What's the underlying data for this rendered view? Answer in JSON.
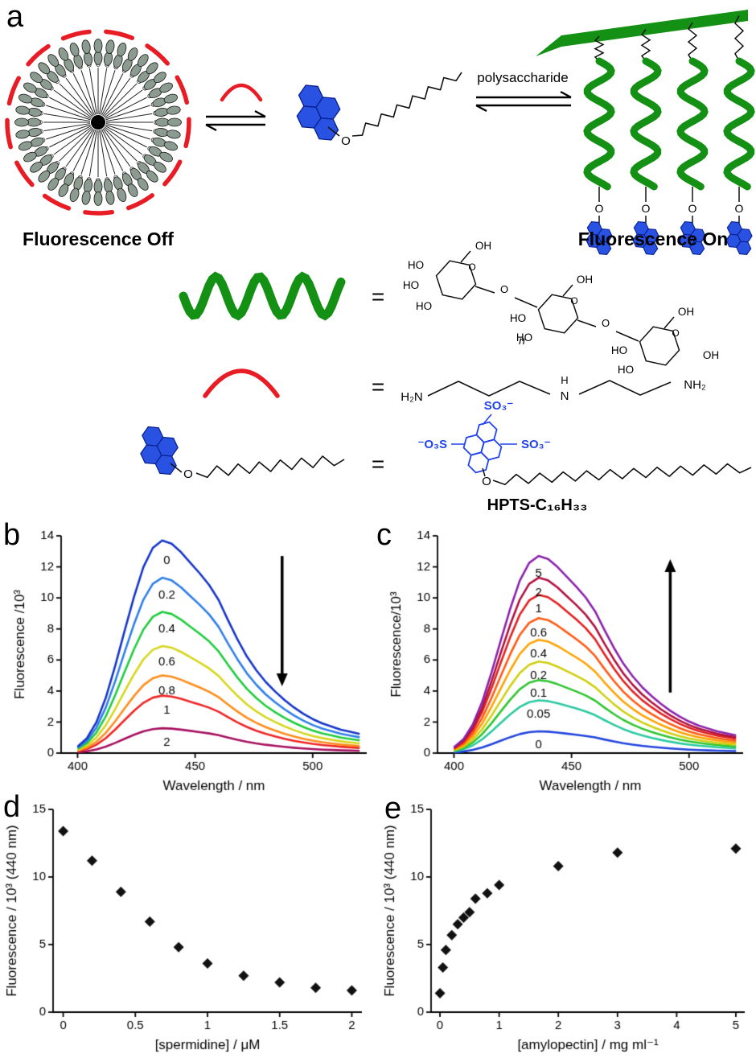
{
  "panel_letters": {
    "a": "a",
    "b": "b",
    "c": "c",
    "d": "d",
    "e": "e"
  },
  "schematic": {
    "fluorescence_off": "Fluorescence Off",
    "fluorescence_on": "Fluorescence On",
    "arrow_label": "polysaccharide",
    "equals": "=",
    "molecule_name": "HPTS-C₁₆H₃₃",
    "labels": {
      "oh": "OH",
      "ho": "HO",
      "o": "O",
      "n": "n",
      "h2n": "H₂N",
      "nh2": "NH₂",
      "n_atom": "N",
      "h": "H",
      "so3": "SO₃⁻",
      "so3_left": "⁻O₃S"
    },
    "colors": {
      "helix_green": "#149114",
      "crescent_red": "#e81c24",
      "pyrene_blue": "#2a52e2",
      "pyrene_blue_dark": "#071f8f",
      "hpts_blue": "#2244ee",
      "micelle_gray": "#8b9b8f"
    }
  },
  "chart_data": [
    {
      "id": "b",
      "type": "line",
      "xlabel": "Wavelength / nm",
      "ylabel": "Fluorescence /10³",
      "xlim": [
        393,
        523
      ],
      "ylim": [
        0,
        14
      ],
      "xticks": [
        400,
        450,
        500
      ],
      "xtick_labels": [
        "400",
        "450",
        "500"
      ],
      "yticks": [
        0,
        2,
        4,
        6,
        8,
        10,
        12,
        14
      ],
      "ytick_labels": [
        "0",
        "2",
        "4",
        "6",
        "8",
        "10",
        "12",
        "14"
      ],
      "label_x": 438,
      "wavelengths": [
        400,
        404,
        408,
        412,
        416,
        420,
        424,
        428,
        432,
        436,
        440,
        444,
        448,
        452,
        456,
        460,
        464,
        468,
        472,
        476,
        480,
        484,
        488,
        492,
        496,
        500,
        504,
        508,
        512,
        516,
        520
      ],
      "shape": [
        0.03,
        0.07,
        0.145,
        0.26,
        0.41,
        0.575,
        0.735,
        0.875,
        0.965,
        1.0,
        0.985,
        0.945,
        0.895,
        0.845,
        0.79,
        0.72,
        0.625,
        0.535,
        0.455,
        0.39,
        0.335,
        0.29,
        0.25,
        0.215,
        0.185,
        0.16,
        0.14,
        0.125,
        0.11,
        0.1,
        0.09
      ],
      "series": [
        {
          "label": "0",
          "peak": 13.7,
          "label_y": 12.4,
          "color": "#1535c8"
        },
        {
          "label": "0.2",
          "peak": 11.3,
          "label_y": 10.15,
          "color": "#2f7fe8"
        },
        {
          "label": "0.4",
          "peak": 9.1,
          "label_y": 8.0,
          "color": "#21cc3e"
        },
        {
          "label": "0.6",
          "peak": 6.9,
          "label_y": 5.85,
          "color": "#d6d61e"
        },
        {
          "label": "0.8",
          "peak": 5.0,
          "label_y": 4.0,
          "color": "#ff8c1a"
        },
        {
          "label": "1",
          "peak": 3.7,
          "label_y": 2.75,
          "color": "#ee2525"
        },
        {
          "label": "2",
          "peak": 1.6,
          "label_y": 0.7,
          "color": "#a61060"
        }
      ],
      "arrow": {
        "direction": "down",
        "x": 487,
        "y_from": 12.7,
        "y_to": 4.3
      }
    },
    {
      "id": "c",
      "type": "line",
      "xlabel": "Wavelength / nm",
      "ylabel": "Fluorescence/10³",
      "xlim": [
        393,
        523
      ],
      "ylim": [
        0,
        14
      ],
      "xticks": [
        400,
        450,
        500
      ],
      "xtick_labels": [
        "400",
        "450",
        "500"
      ],
      "yticks": [
        0,
        2,
        4,
        6,
        8,
        10,
        12,
        14
      ],
      "ytick_labels": [
        "0",
        "2",
        "4",
        "6",
        "8",
        "10",
        "12",
        "14"
      ],
      "label_x": 436,
      "wavelengths": [
        400,
        404,
        408,
        412,
        416,
        420,
        424,
        428,
        432,
        436,
        440,
        444,
        448,
        452,
        456,
        460,
        464,
        468,
        472,
        476,
        480,
        484,
        488,
        492,
        496,
        500,
        504,
        508,
        512,
        516,
        520
      ],
      "shape": [
        0.03,
        0.07,
        0.145,
        0.26,
        0.41,
        0.575,
        0.735,
        0.875,
        0.965,
        1.0,
        0.985,
        0.945,
        0.895,
        0.845,
        0.79,
        0.72,
        0.625,
        0.535,
        0.455,
        0.39,
        0.335,
        0.29,
        0.25,
        0.215,
        0.185,
        0.16,
        0.14,
        0.125,
        0.11,
        0.1,
        0.09
      ],
      "series": [
        {
          "label": "5",
          "peak": 12.7,
          "label_y": 11.55,
          "color": "#8a22aa"
        },
        {
          "label": "2",
          "peak": 11.3,
          "label_y": 10.35,
          "color": "#b01240"
        },
        {
          "label": "1",
          "peak": 10.2,
          "label_y": 9.3,
          "color": "#e02020"
        },
        {
          "label": "0.6",
          "peak": 8.7,
          "label_y": 7.75,
          "color": "#ff5a12"
        },
        {
          "label": "0.4",
          "peak": 7.3,
          "label_y": 6.4,
          "color": "#ffa200"
        },
        {
          "label": "0.2",
          "peak": 5.9,
          "label_y": 5.0,
          "color": "#cfcf10"
        },
        {
          "label": "0.1",
          "peak": 4.7,
          "label_y": 3.85,
          "color": "#2fc52f"
        },
        {
          "label": "0.05",
          "peak": 3.4,
          "label_y": 2.5,
          "color": "#2cc9a0"
        },
        {
          "label": "0",
          "peak": 1.4,
          "label_y": 0.55,
          "color": "#2244dd"
        }
      ],
      "arrow": {
        "direction": "up",
        "x": 492,
        "y_from": 3.9,
        "y_to": 12.5
      }
    },
    {
      "id": "d",
      "type": "scatter",
      "xlabel": "[spermidine] / μM",
      "ylabel": "Fluorescence / 10³ (440 nm)",
      "xlim": [
        -0.07,
        2.07
      ],
      "ylim": [
        0,
        15
      ],
      "xticks": [
        0,
        0.5,
        1,
        1.5,
        2
      ],
      "xtick_labels": [
        "0",
        "0.5",
        "1",
        "1.5",
        "2"
      ],
      "yticks": [
        0,
        5,
        10,
        15
      ],
      "ytick_labels": [
        "0",
        "5",
        "10",
        "15"
      ],
      "marker": "diamond",
      "marker_color": "#111111",
      "x": [
        0,
        0.2,
        0.4,
        0.6,
        0.8,
        1.0,
        1.25,
        1.5,
        1.75,
        2.0
      ],
      "y": [
        13.4,
        11.2,
        8.9,
        6.7,
        4.8,
        3.6,
        2.7,
        2.2,
        1.8,
        1.6
      ]
    },
    {
      "id": "e",
      "type": "scatter",
      "xlabel": "[amylopectin] / mg ml⁻¹",
      "ylabel": "Fluorescence / 10³ (440 nm)",
      "xlim": [
        -0.15,
        5.15
      ],
      "ylim": [
        0,
        15
      ],
      "xticks": [
        0,
        1,
        2,
        3,
        4,
        5
      ],
      "xtick_labels": [
        "0",
        "1",
        "2",
        "3",
        "4",
        "5"
      ],
      "yticks": [
        0,
        5,
        10,
        15
      ],
      "ytick_labels": [
        "0",
        "5",
        "10",
        "15"
      ],
      "marker": "diamond",
      "marker_color": "#111111",
      "x": [
        0,
        0.05,
        0.1,
        0.2,
        0.3,
        0.4,
        0.5,
        0.6,
        0.8,
        1.0,
        2.0,
        3.0,
        5.0
      ],
      "y": [
        1.4,
        3.3,
        4.6,
        5.7,
        6.5,
        7.0,
        7.4,
        8.4,
        8.8,
        9.4,
        10.8,
        11.8,
        12.1
      ]
    }
  ]
}
